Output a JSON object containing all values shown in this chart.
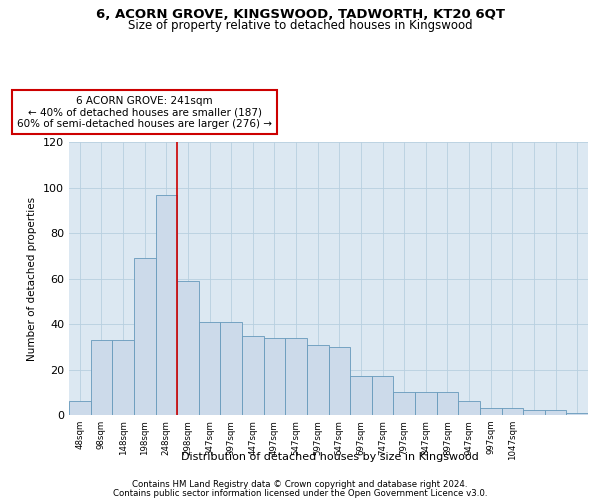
{
  "title1": "6, ACORN GROVE, KINGSWOOD, TADWORTH, KT20 6QT",
  "title2": "Size of property relative to detached houses in Kingswood",
  "xlabel": "Distribution of detached houses by size in Kingswood",
  "ylabel": "Number of detached properties",
  "bar_values": [
    6,
    33,
    33,
    69,
    97,
    59,
    41,
    41,
    35,
    34,
    34,
    31,
    30,
    17,
    17,
    10,
    10,
    10,
    6,
    3,
    3,
    2,
    2,
    1
  ],
  "bar_labels": [
    "48sqm",
    "98sqm",
    "148sqm",
    "198sqm",
    "248sqm",
    "298sqm",
    "347sqm",
    "397sqm",
    "447sqm",
    "497sqm",
    "547sqm",
    "597sqm",
    "647sqm",
    "697sqm",
    "747sqm",
    "797sqm",
    "847sqm",
    "897sqm",
    "947sqm",
    "997sqm",
    "1047sqm",
    "",
    "",
    ""
  ],
  "bar_color": "#ccdaea",
  "bar_edge_color": "#6699bb",
  "grid_color": "#b8cfe0",
  "bg_color": "#dce8f2",
  "vline_x": 4.5,
  "vline_color": "#cc0000",
  "annotation_text": "6 ACORN GROVE: 241sqm\n← 40% of detached houses are smaller (187)\n60% of semi-detached houses are larger (276) →",
  "annotation_box_color": "#ffffff",
  "annotation_box_edge": "#cc0000",
  "ylim": [
    0,
    120
  ],
  "yticks": [
    0,
    20,
    40,
    60,
    80,
    100,
    120
  ],
  "footer1": "Contains HM Land Registry data © Crown copyright and database right 2024.",
  "footer2": "Contains public sector information licensed under the Open Government Licence v3.0."
}
